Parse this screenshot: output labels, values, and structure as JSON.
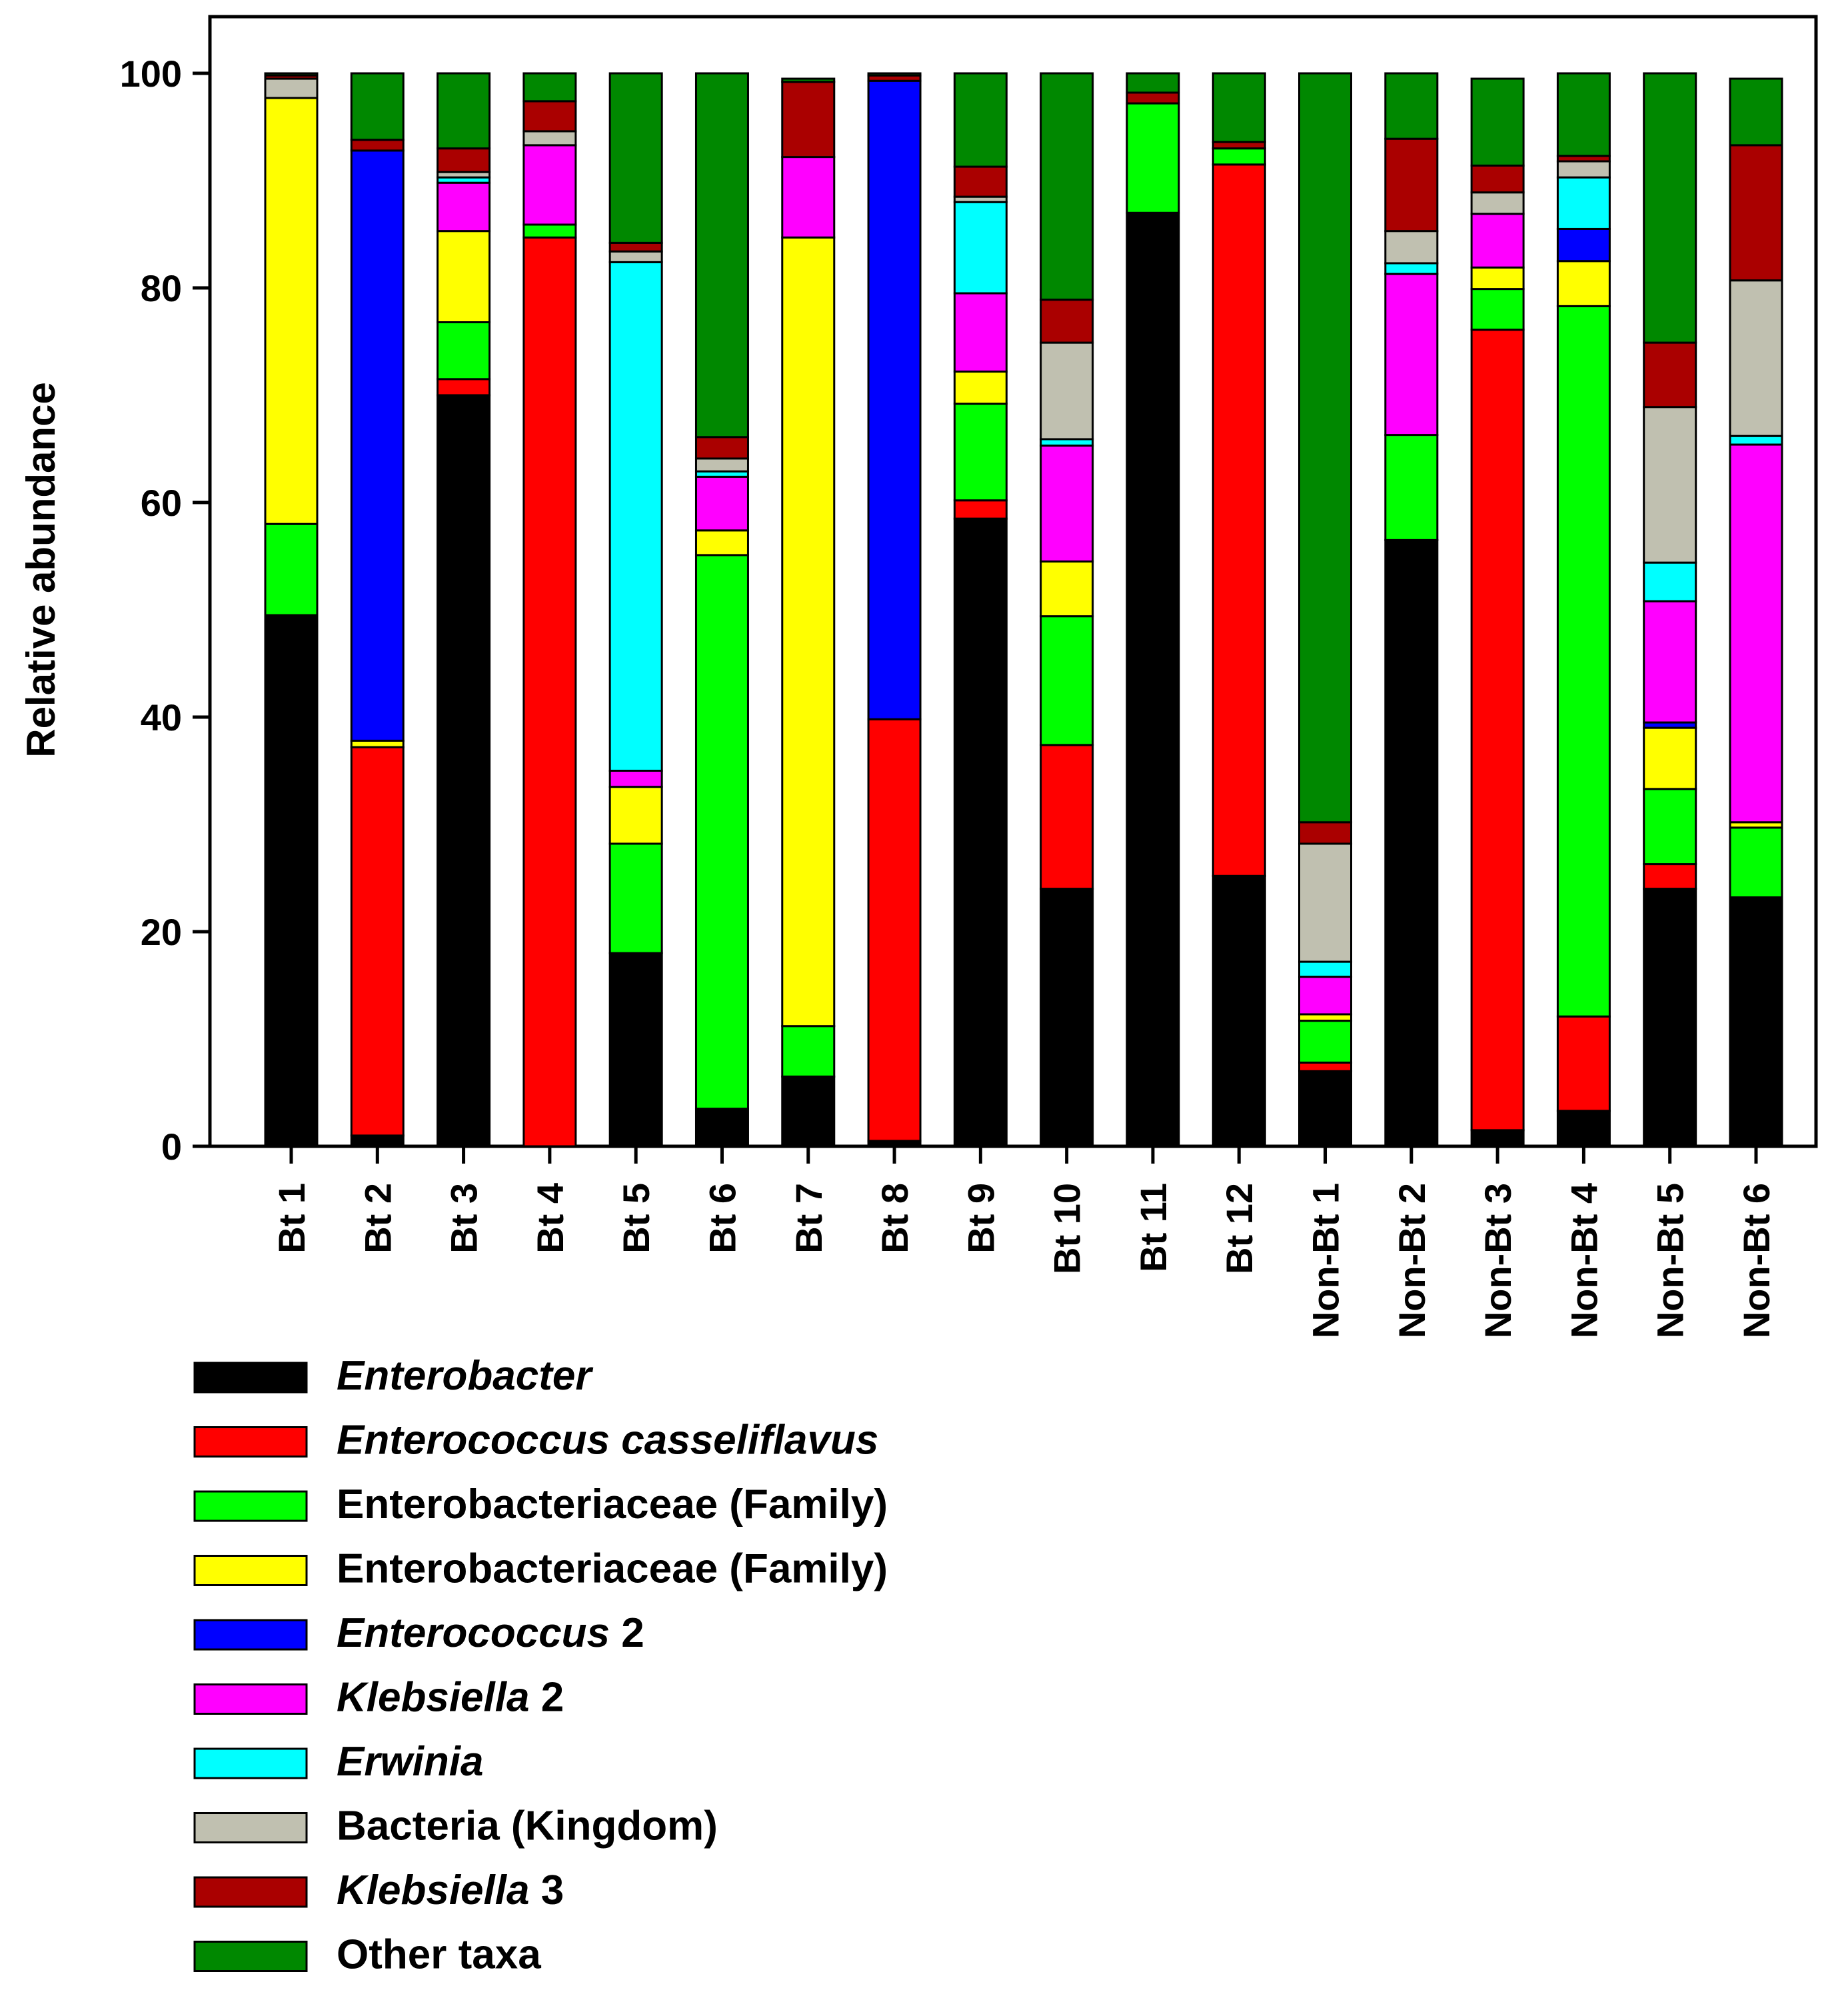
{
  "chart_data": {
    "type": "bar",
    "stacked": true,
    "title": "",
    "xlabel": "",
    "ylabel": "Relative abundance",
    "ylim": [
      0,
      100
    ],
    "yticks": [
      0,
      20,
      40,
      60,
      80,
      100
    ],
    "grid": false,
    "legend_position": "bottom-left",
    "categories": [
      "Bt 1",
      "Bt 2",
      "Bt 3",
      "Bt 4",
      "Bt 5",
      "Bt 6",
      "Bt 7",
      "Bt 8",
      "Bt 9",
      "Bt 10",
      "Bt 11",
      "Bt 12",
      "Non-Bt 1",
      "Non-Bt 2",
      "Non-Bt 3",
      "Non-Bt 4",
      "Non-Bt 5",
      "Non-Bt 6"
    ],
    "series": [
      {
        "name": "Enterobacter",
        "italic_part": "Enterobacter",
        "plain_part": "",
        "color": "#000000",
        "values": [
          49.5,
          1,
          70,
          0,
          18,
          3.5,
          6.5,
          0.5,
          58.5,
          24,
          87,
          25.2,
          7,
          56.5,
          1.5,
          3.3,
          24,
          23.2
        ]
      },
      {
        "name": "Enterococcus casseliflavus",
        "italic_part": "Enterococcus casseliflavus",
        "plain_part": "",
        "color": "#ff0000",
        "values": [
          0,
          36.2,
          1.5,
          84.7,
          0,
          0,
          0,
          39.3,
          1.7,
          13.4,
          0,
          66.3,
          0.8,
          0,
          74.6,
          8.8,
          2.3,
          0
        ]
      },
      {
        "name": "Enterobacteriaceae (Family)",
        "italic_part": "",
        "plain_part": "Enterobacteriaceae (Family)",
        "color": "#00ff00",
        "values": [
          8.5,
          0,
          5.3,
          1.2,
          10.2,
          51.6,
          4.7,
          0,
          9,
          12,
          10.2,
          1.5,
          3.9,
          9.8,
          3.8,
          66.2,
          7,
          6.5
        ]
      },
      {
        "name": "Enterobacteriaceae (Family)",
        "italic_part": "",
        "plain_part": "Enterobacteriaceae (Family)",
        "color": "#ffff00",
        "values": [
          39.7,
          0.6,
          8.5,
          0,
          5.3,
          2.3,
          73.5,
          0,
          3,
          5.1,
          0,
          0,
          0.6,
          0,
          2,
          4.2,
          5.7,
          0.5
        ]
      },
      {
        "name": "Enterococcus 2",
        "italic_part": "Enterococcus",
        "plain_part": " 2",
        "color": "#0000ff",
        "values": [
          0,
          55,
          0,
          0,
          0,
          0,
          0,
          59.5,
          0,
          0,
          0,
          0,
          0,
          0,
          0,
          3,
          0.5,
          0
        ]
      },
      {
        "name": "Klebsiella 2",
        "italic_part": "Klebsiella",
        "plain_part": " 2",
        "color": "#ff00ff",
        "values": [
          0,
          0,
          4.5,
          7.4,
          1.5,
          5,
          7.5,
          0,
          7.3,
          10.8,
          0,
          0,
          3.5,
          15,
          5,
          0,
          11.3,
          35.2
        ]
      },
      {
        "name": "Erwinia",
        "italic_part": "Erwinia",
        "plain_part": "",
        "color": "#00ffff",
        "values": [
          0,
          0,
          0.5,
          0,
          47.4,
          0.5,
          0,
          0,
          8.5,
          0.6,
          0,
          0,
          1.4,
          1,
          0,
          4.8,
          3.6,
          0.8
        ]
      },
      {
        "name": "Bacteria (Kingdom)",
        "italic_part": "",
        "plain_part": "Bacteria (Kingdom)",
        "color": "#c0c0b0",
        "values": [
          1.8,
          0,
          0.5,
          1.3,
          1,
          1.2,
          0,
          0,
          0.5,
          9,
          0,
          0,
          11,
          3,
          2,
          1.5,
          14.5,
          14.5
        ]
      },
      {
        "name": "Klebsiella 3",
        "italic_part": "Klebsiella",
        "plain_part": " 3",
        "color": "#aa0000",
        "values": [
          0.3,
          1,
          2.2,
          2.8,
          0.8,
          2,
          7,
          0.5,
          2.8,
          4,
          1,
          0.6,
          2,
          8.6,
          2.5,
          0.5,
          6,
          12.6
        ]
      },
      {
        "name": "Other taxa",
        "italic_part": "",
        "plain_part": "Other taxa",
        "color": "#008800",
        "values": [
          0.2,
          6.2,
          7,
          2.6,
          15.8,
          33.9,
          0.3,
          0.2,
          8.7,
          21.1,
          1.8,
          6.4,
          69.8,
          6.1,
          8.1,
          7.7,
          25.1,
          6.2
        ]
      }
    ]
  }
}
